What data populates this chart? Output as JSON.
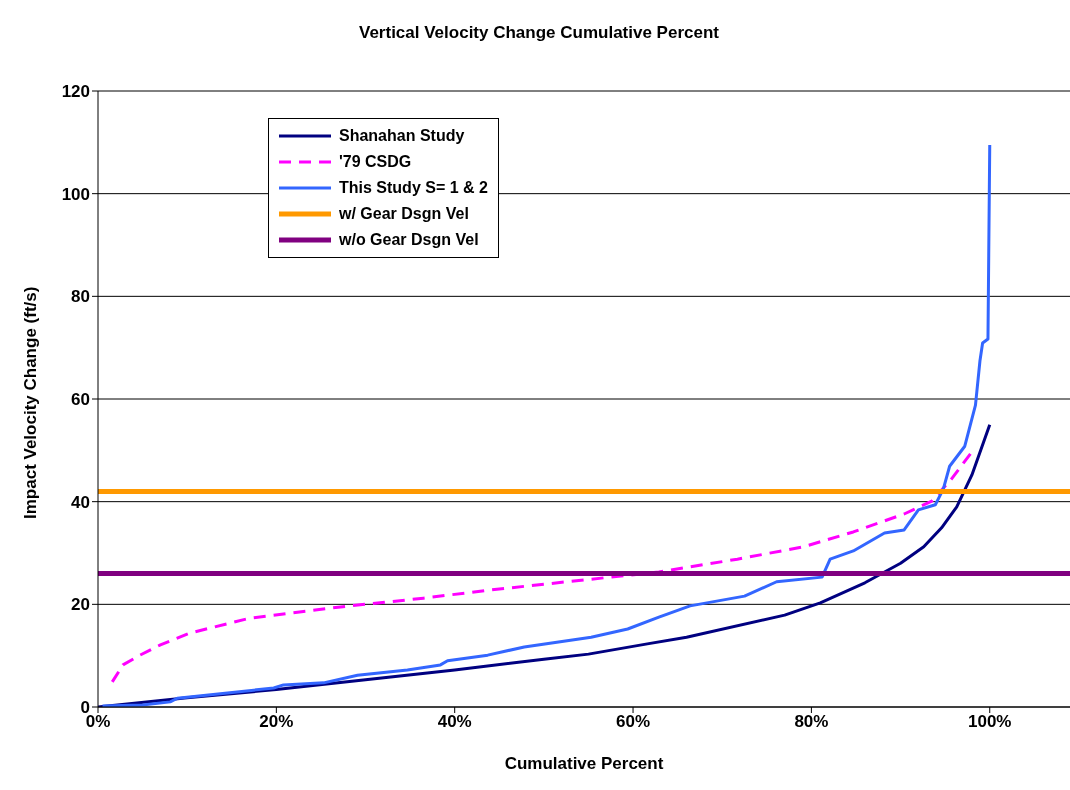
{
  "chart_data": {
    "type": "line",
    "title": "Vertical Velocity Change Cumulative Percent",
    "xlabel": "Cumulative Percent",
    "ylabel": "Impact Velocity Change (ft/s)",
    "xlim": [
      0,
      109
    ],
    "xticks": [
      {
        "value": 0,
        "label": "0%"
      },
      {
        "value": 20,
        "label": "20%"
      },
      {
        "value": 40,
        "label": "40%"
      },
      {
        "value": 60,
        "label": "60%"
      },
      {
        "value": 80,
        "label": "80%"
      },
      {
        "value": 100,
        "label": "100%"
      }
    ],
    "ylim": [
      0,
      120
    ],
    "yticks": [
      0,
      20,
      40,
      60,
      80,
      100,
      120
    ],
    "grid": "y",
    "legend": "top left",
    "marker": "none",
    "series": [
      {
        "name": "Shanahan Study",
        "color": "#000080",
        "line_style": "solid",
        "x": [
          0,
          10,
          20,
          30,
          40,
          50,
          55,
          61.6,
          66,
          77,
          81,
          86,
          90,
          92.6,
          94.6,
          96.3,
          98,
          100
        ],
        "values": [
          0,
          1.8,
          3.4,
          5.3,
          7.2,
          9.3,
          10.3,
          12.3,
          13.6,
          17.9,
          20.3,
          24.2,
          28,
          31.2,
          34.9,
          39,
          45.2,
          55
        ]
      },
      {
        "name": "'79 CSDG",
        "color": "#ff00ff",
        "line_style": "dashed",
        "x": [
          1.6,
          2.8,
          4.7,
          7,
          10.3,
          17,
          27.2,
          36.5,
          44,
          55.3,
          62.9,
          71.7,
          79.1,
          84.7,
          90.4,
          93.5,
          95.7,
          98
        ],
        "values": [
          4.9,
          8.2,
          10.1,
          12.1,
          14.4,
          17.3,
          19.5,
          21.2,
          22.8,
          24.9,
          26.3,
          28.8,
          31.2,
          34.1,
          37.6,
          40.1,
          44.4,
          49.7
        ]
      },
      {
        "name": "This Study S= 1 & 2",
        "color": "#3366ff",
        "line_style": "solid",
        "x": [
          0.5,
          5,
          8.1,
          8.9,
          19.7,
          20.8,
          25.3,
          29.1,
          34.7,
          38.4,
          39.2,
          43.7,
          47.8,
          55.3,
          59.4,
          62.9,
          66.4,
          72.5,
          76.1,
          81.2,
          82.1,
          84.7,
          88.2,
          90.4,
          92,
          93.9,
          94.8,
          95.5,
          97.2,
          98.4,
          98.9,
          99.2,
          99.8,
          100
        ],
        "values": [
          0.2,
          0.4,
          1,
          1.7,
          3.7,
          4.3,
          4.7,
          6.2,
          7.2,
          8.2,
          9,
          10.1,
          11.7,
          13.6,
          15.2,
          17.5,
          19.7,
          21.6,
          24.4,
          25.3,
          28.8,
          30.4,
          33.9,
          34.5,
          38.4,
          39.4,
          42.5,
          46.9,
          50.8,
          58.8,
          67.4,
          70.9,
          71.7,
          109.5
        ]
      },
      {
        "name": "w/ Gear Dsgn Vel",
        "color": "#ff9900",
        "line_style": "solid",
        "x": [
          0,
          109
        ],
        "values": [
          42,
          42
        ]
      },
      {
        "name": "w/o Gear Dsgn Vel",
        "color": "#800080",
        "line_style": "solid",
        "x": [
          0,
          109
        ],
        "values": [
          26,
          26
        ]
      }
    ]
  }
}
